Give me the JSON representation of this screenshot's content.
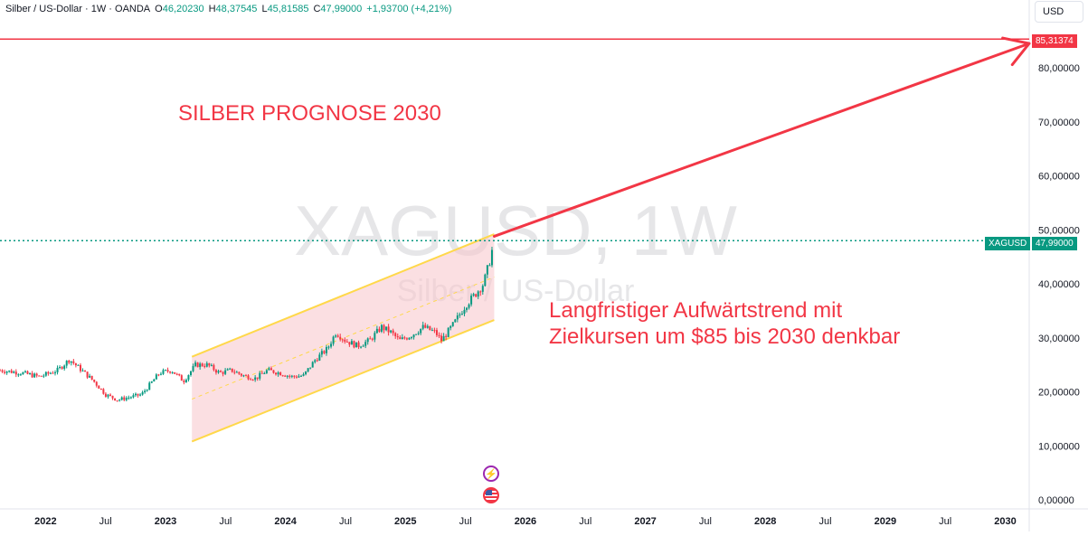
{
  "legend": {
    "symbol": "Silber / US-Dollar · 1W · OANDA",
    "o_label": "O",
    "o_value": "46,20230",
    "h_label": "H",
    "h_value": "48,37545",
    "l_label": "L",
    "l_value": "45,81585",
    "c_label": "C",
    "c_value": "47,99000",
    "change": "+1,93700 (+4,21%)"
  },
  "currency_button": "USD",
  "watermark": {
    "ticker": "XAGUSD, 1W",
    "name": "Silber / US-Dollar"
  },
  "annotations": {
    "title": "SILBER PROGNOSE 2030",
    "note_line1": "Langfristiger Aufwärtstrend mit",
    "note_line2": "Zielkursen um $85 bis 2030 denkbar"
  },
  "price_tags": {
    "target_value": "85,31374",
    "current_symbol": "XAGUSD",
    "current_value": "47,99000"
  },
  "colors": {
    "up": "#089981",
    "down": "#f23645",
    "annotation": "#f23645",
    "channel_line": "#ffd84a",
    "channel_fill": "#f7c5cb",
    "watermark": "#e6e6e8"
  },
  "events": [
    {
      "icon": "lightning-icon",
      "glyph": "⚡"
    },
    {
      "icon": "us-flag-icon",
      "glyph": ""
    }
  ],
  "chart_data": {
    "type": "candlestick",
    "timeframe": "1W",
    "y_axis": {
      "min": 0,
      "max": 90,
      "ticks": [
        0,
        10,
        20,
        30,
        40,
        50,
        60,
        70,
        80
      ],
      "tick_labels": [
        "0,00000",
        "10,00000",
        "20,00000",
        "30,00000",
        "40,00000",
        "50,00000",
        "60,00000",
        "70,00000",
        "80,00000"
      ]
    },
    "x_axis": {
      "start": 2021.62,
      "end": 2030.2,
      "ticks": [
        2022.0,
        2022.5,
        2023.0,
        2023.5,
        2024.0,
        2024.5,
        2025.0,
        2025.5,
        2026.0,
        2026.5,
        2027.0,
        2027.5,
        2028.0,
        2028.5,
        2029.0,
        2029.5,
        2030.0
      ],
      "tick_labels": [
        "2022",
        "Jul",
        "2023",
        "Jul",
        "2024",
        "Jul",
        "2025",
        "Jul",
        "2026",
        "Jul",
        "2027",
        "Jul",
        "2028",
        "Jul",
        "2029",
        "Jul",
        "2030"
      ]
    },
    "close_path": [
      [
        2021.62,
        24
      ],
      [
        2021.8,
        23.5
      ],
      [
        2021.95,
        22.8
      ],
      [
        2022.1,
        24
      ],
      [
        2022.2,
        26
      ],
      [
        2022.3,
        24
      ],
      [
        2022.4,
        22
      ],
      [
        2022.5,
        19.5
      ],
      [
        2022.6,
        18.5
      ],
      [
        2022.7,
        19
      ],
      [
        2022.8,
        19.5
      ],
      [
        2022.95,
        23.5
      ],
      [
        2023.05,
        24
      ],
      [
        2023.15,
        22
      ],
      [
        2023.25,
        25
      ],
      [
        2023.35,
        25
      ],
      [
        2023.45,
        23.5
      ],
      [
        2023.55,
        24
      ],
      [
        2023.65,
        23
      ],
      [
        2023.75,
        22.5
      ],
      [
        2023.85,
        24
      ],
      [
        2023.95,
        23.5
      ],
      [
        2024.05,
        22.8
      ],
      [
        2024.15,
        23
      ],
      [
        2024.25,
        26
      ],
      [
        2024.35,
        28
      ],
      [
        2024.42,
        31
      ],
      [
        2024.5,
        29.5
      ],
      [
        2024.6,
        28.5
      ],
      [
        2024.7,
        29.5
      ],
      [
        2024.8,
        32
      ],
      [
        2024.88,
        31
      ],
      [
        2024.95,
        29.5
      ],
      [
        2025.05,
        30.5
      ],
      [
        2025.15,
        32
      ],
      [
        2025.25,
        31
      ],
      [
        2025.3,
        29.5
      ],
      [
        2025.4,
        32.5
      ],
      [
        2025.5,
        36
      ],
      [
        2025.58,
        38
      ],
      [
        2025.65,
        40
      ],
      [
        2025.7,
        44
      ],
      [
        2025.74,
        47.99
      ]
    ],
    "channel": {
      "upper": [
        [
          2023.22,
          26.5
        ],
        [
          2025.74,
          49.2
        ]
      ],
      "lower": [
        [
          2023.22,
          10.8
        ],
        [
          2025.74,
          33.3
        ]
      ],
      "mid": [
        [
          2023.22,
          18.65
        ],
        [
          2025.74,
          41.25
        ]
      ]
    },
    "target_line": {
      "value": 85.31374
    },
    "projection": {
      "from": [
        2025.74,
        48.8
      ],
      "to": [
        2030.2,
        84.5
      ]
    },
    "current_line": {
      "value": 47.99
    }
  }
}
